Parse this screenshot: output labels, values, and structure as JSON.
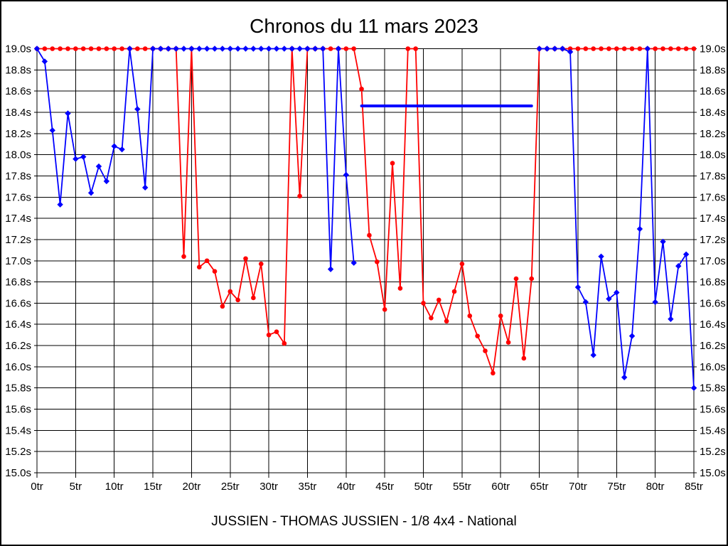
{
  "window": {
    "title": "Chronos du 11 mars 2023",
    "subtitle": "JUSSIEN - THOMAS JUSSIEN - 1/8 4x4 - National"
  },
  "colors": {
    "series_red": "#ff0000",
    "series_blue": "#0000ff",
    "grid": "#000000",
    "background": "#ffffff",
    "text": "#000000"
  },
  "chart_data": {
    "type": "line",
    "title": "Chronos du 11 mars 2023",
    "subtitle": "JUSSIEN - THOMAS JUSSIEN - 1/8 4x4 - National",
    "x_unit": "tr",
    "y_unit": "s",
    "xlim": [
      0,
      85
    ],
    "ylim": [
      15.0,
      19.0
    ],
    "grid": true,
    "y_axis_sides": [
      "left",
      "right"
    ],
    "x_ticks": [
      0,
      5,
      10,
      15,
      20,
      25,
      30,
      35,
      40,
      45,
      50,
      55,
      60,
      65,
      70,
      75,
      80,
      85
    ],
    "x_tick_labels": [
      "0tr",
      "5tr",
      "10tr",
      "15tr",
      "20tr",
      "25tr",
      "30tr",
      "35tr",
      "40tr",
      "45tr",
      "50tr",
      "55tr",
      "60tr",
      "65tr",
      "70tr",
      "75tr",
      "80tr",
      "85tr"
    ],
    "y_ticks": [
      19.0,
      18.8,
      18.6,
      18.4,
      18.2,
      18.0,
      17.8,
      17.6,
      17.4,
      17.2,
      17.0,
      16.8,
      16.6,
      16.4,
      16.2,
      16.0,
      15.8,
      15.6,
      15.4,
      15.2,
      15.0
    ],
    "y_tick_labels": [
      "19.0s",
      "18.8s",
      "18.6s",
      "18.4s",
      "18.2s",
      "18.0s",
      "17.8s",
      "17.6s",
      "17.4s",
      "17.2s",
      "17.0s",
      "16.8s",
      "16.6s",
      "16.4s",
      "16.2s",
      "16.0s",
      "15.8s",
      "15.6s",
      "15.4s",
      "15.2s",
      "15.0s"
    ],
    "series": [
      {
        "name": "red",
        "color": "#ff0000",
        "marker": "circle",
        "marker_size": 3.3,
        "line_width": 1.8,
        "segments": [
          {
            "markers": true,
            "points": [
              [
                0,
                19.0
              ],
              [
                1,
                19.0
              ],
              [
                2,
                19.0
              ],
              [
                3,
                19.0
              ],
              [
                4,
                19.0
              ],
              [
                5,
                19.0
              ],
              [
                6,
                19.0
              ],
              [
                7,
                19.0
              ],
              [
                8,
                19.0
              ],
              [
                9,
                19.0
              ],
              [
                10,
                19.0
              ],
              [
                11,
                19.0
              ],
              [
                12,
                19.0
              ],
              [
                13,
                19.0
              ],
              [
                14,
                19.0
              ],
              [
                15,
                19.0
              ],
              [
                16,
                19.0
              ],
              [
                17,
                19.0
              ],
              [
                18,
                19.0
              ],
              [
                19,
                17.04
              ],
              [
                20,
                19.0
              ],
              [
                21,
                16.94
              ],
              [
                22,
                17.0
              ],
              [
                23,
                16.9
              ],
              [
                24,
                16.57
              ],
              [
                25,
                16.71
              ],
              [
                26,
                16.63
              ],
              [
                27,
                17.02
              ],
              [
                28,
                16.65
              ],
              [
                29,
                16.97
              ],
              [
                30,
                16.3
              ],
              [
                31,
                16.33
              ],
              [
                32,
                16.22
              ],
              [
                33,
                19.0
              ],
              [
                34,
                17.61
              ],
              [
                35,
                19.0
              ],
              [
                36,
                19.0
              ],
              [
                37,
                19.0
              ],
              [
                38,
                19.0
              ],
              [
                39,
                19.0
              ],
              [
                40,
                19.0
              ],
              [
                41,
                19.0
              ],
              [
                42,
                18.62
              ],
              [
                43,
                17.24
              ],
              [
                44,
                16.99
              ],
              [
                45,
                16.54
              ],
              [
                46,
                17.92
              ],
              [
                47,
                16.74
              ],
              [
                48,
                19.0
              ],
              [
                49,
                19.0
              ],
              [
                50,
                16.6
              ],
              [
                51,
                16.46
              ],
              [
                52,
                16.63
              ],
              [
                53,
                16.43
              ],
              [
                54,
                16.71
              ],
              [
                55,
                16.97
              ],
              [
                56,
                16.48
              ],
              [
                57,
                16.29
              ],
              [
                58,
                16.15
              ],
              [
                59,
                15.94
              ],
              [
                60,
                16.48
              ],
              [
                61,
                16.23
              ],
              [
                62,
                16.83
              ],
              [
                63,
                16.08
              ],
              [
                64,
                16.83
              ],
              [
                65,
                19.0
              ],
              [
                66,
                19.0
              ],
              [
                67,
                19.0
              ],
              [
                68,
                19.0
              ],
              [
                69,
                19.0
              ],
              [
                70,
                19.0
              ],
              [
                71,
                19.0
              ],
              [
                72,
                19.0
              ],
              [
                73,
                19.0
              ],
              [
                74,
                19.0
              ],
              [
                75,
                19.0
              ],
              [
                76,
                19.0
              ],
              [
                77,
                19.0
              ],
              [
                78,
                19.0
              ],
              [
                79,
                19.0
              ],
              [
                80,
                19.0
              ],
              [
                81,
                19.0
              ],
              [
                82,
                19.0
              ],
              [
                83,
                19.0
              ],
              [
                84,
                19.0
              ],
              [
                85,
                19.0
              ]
            ]
          }
        ]
      },
      {
        "name": "blue",
        "color": "#0000ff",
        "marker": "diamond",
        "marker_size": 4.2,
        "line_width": 1.8,
        "segments": [
          {
            "markers": true,
            "points": [
              [
                0,
                19.0
              ],
              [
                1,
                18.88
              ],
              [
                2,
                18.23
              ],
              [
                3,
                17.53
              ],
              [
                4,
                18.39
              ],
              [
                5,
                17.96
              ],
              [
                6,
                17.98
              ],
              [
                7,
                17.64
              ],
              [
                8,
                17.89
              ],
              [
                9,
                17.75
              ],
              [
                10,
                18.08
              ],
              [
                11,
                18.05
              ],
              [
                12,
                19.0
              ],
              [
                13,
                18.43
              ],
              [
                14,
                17.69
              ],
              [
                15,
                19.0
              ],
              [
                16,
                19.0
              ],
              [
                17,
                19.0
              ],
              [
                18,
                19.0
              ],
              [
                19,
                19.0
              ],
              [
                20,
                19.0
              ],
              [
                21,
                19.0
              ],
              [
                22,
                19.0
              ],
              [
                23,
                19.0
              ],
              [
                24,
                19.0
              ],
              [
                25,
                19.0
              ],
              [
                26,
                19.0
              ],
              [
                27,
                19.0
              ],
              [
                28,
                19.0
              ],
              [
                29,
                19.0
              ],
              [
                30,
                19.0
              ],
              [
                31,
                19.0
              ],
              [
                32,
                19.0
              ],
              [
                33,
                19.0
              ],
              [
                34,
                19.0
              ],
              [
                35,
                19.0
              ],
              [
                36,
                19.0
              ],
              [
                37,
                19.0
              ],
              [
                38,
                16.92
              ],
              [
                39,
                19.0
              ],
              [
                40,
                17.81
              ],
              [
                41,
                16.98
              ]
            ]
          },
          {
            "markers": false,
            "line_width": 4,
            "points": [
              [
                42,
                18.46
              ],
              [
                64,
                18.46
              ]
            ]
          },
          {
            "markers": true,
            "points": [
              [
                65,
                19.0
              ],
              [
                66,
                19.0
              ],
              [
                67,
                19.0
              ],
              [
                68,
                19.0
              ],
              [
                69,
                18.97
              ],
              [
                70,
                16.75
              ],
              [
                71,
                16.61
              ],
              [
                72,
                16.11
              ],
              [
                73,
                17.04
              ],
              [
                74,
                16.64
              ],
              [
                75,
                16.7
              ],
              [
                76,
                15.9
              ],
              [
                77,
                16.29
              ],
              [
                78,
                17.3
              ],
              [
                79,
                19.0
              ],
              [
                80,
                16.61
              ],
              [
                81,
                17.18
              ],
              [
                82,
                16.45
              ],
              [
                83,
                16.95
              ],
              [
                84,
                17.06
              ],
              [
                85,
                15.8
              ]
            ]
          }
        ]
      }
    ]
  }
}
